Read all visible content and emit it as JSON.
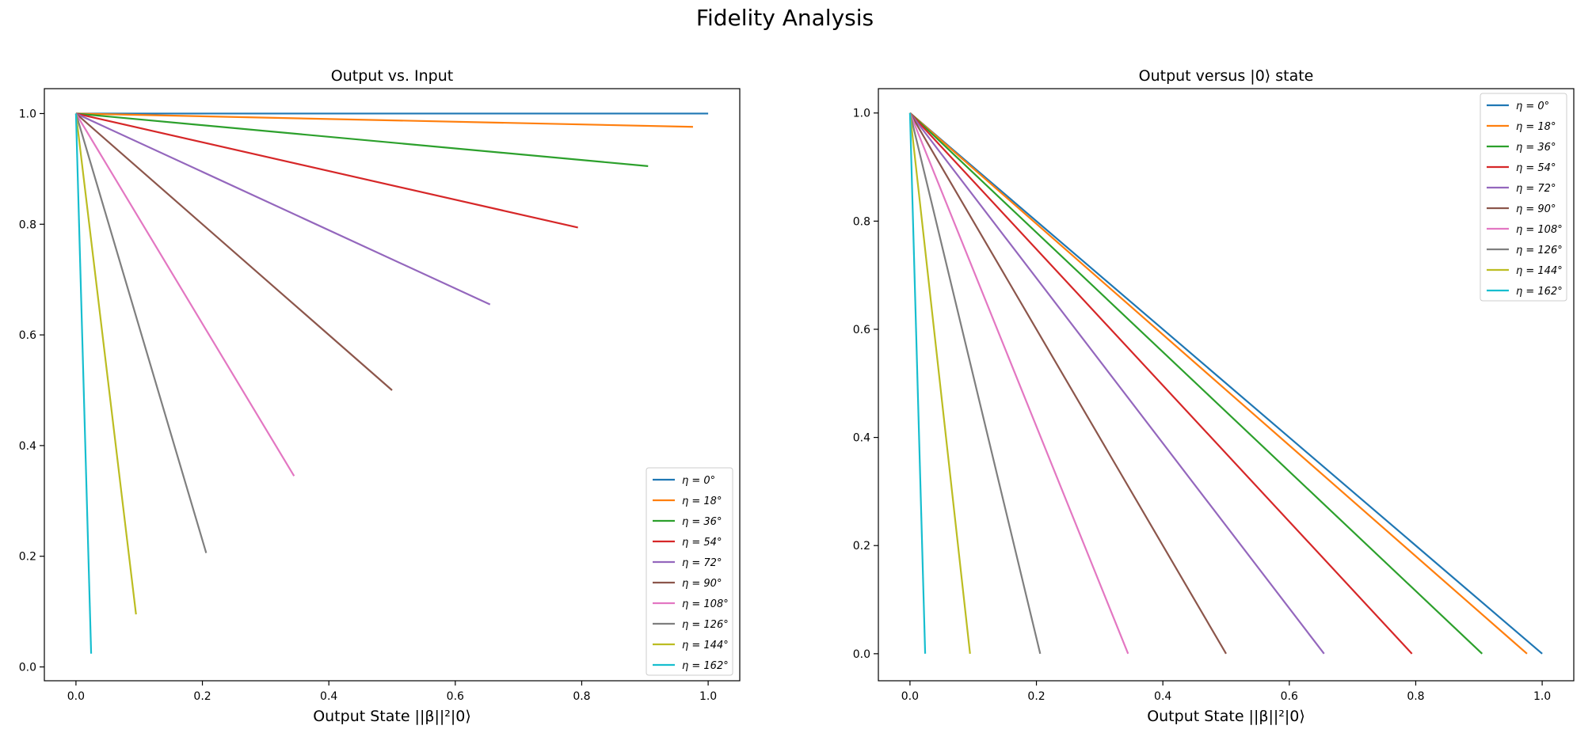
{
  "suptitle": "Fidelity Analysis",
  "series_labels": [
    "η = 0°",
    "η = 18°",
    "η = 36°",
    "η = 54°",
    "η = 72°",
    "η = 90°",
    "η = 108°",
    "η = 126°",
    "η = 144°",
    "η = 162°"
  ],
  "series_colors": [
    "#1f77b4",
    "#ff7f0e",
    "#2ca02c",
    "#d62728",
    "#9467bd",
    "#8c564b",
    "#e377c2",
    "#7f7f7f",
    "#bcbd22",
    "#17becf"
  ],
  "chart_data": [
    {
      "type": "line",
      "title": "Output vs. Input",
      "xlabel": "Output State ||β||²|0⟩",
      "ylabel": "",
      "xlim": [
        -0.05,
        1.05
      ],
      "ylim": [
        -0.025,
        1.045
      ],
      "xticks": [
        "0.0",
        "0.2",
        "0.4",
        "0.6",
        "0.8",
        "1.0"
      ],
      "yticks": [
        "0.0",
        "0.2",
        "0.4",
        "0.6",
        "0.8",
        "1.0"
      ],
      "legend": "lower-right",
      "grid": false,
      "series": [
        {
          "name": "η = 0°",
          "x": [
            0,
            1.0
          ],
          "y": [
            1.0,
            1.0
          ]
        },
        {
          "name": "η = 18°",
          "x": [
            0,
            0.976
          ],
          "y": [
            1.0,
            0.976
          ]
        },
        {
          "name": "η = 36°",
          "x": [
            0,
            0.905
          ],
          "y": [
            1.0,
            0.905
          ]
        },
        {
          "name": "η = 54°",
          "x": [
            0,
            0.794
          ],
          "y": [
            1.0,
            0.794
          ]
        },
        {
          "name": "η = 72°",
          "x": [
            0,
            0.655
          ],
          "y": [
            1.0,
            0.655
          ]
        },
        {
          "name": "η = 90°",
          "x": [
            0,
            0.5
          ],
          "y": [
            1.0,
            0.5
          ]
        },
        {
          "name": "η = 108°",
          "x": [
            0,
            0.345
          ],
          "y": [
            1.0,
            0.345
          ]
        },
        {
          "name": "η = 126°",
          "x": [
            0,
            0.206
          ],
          "y": [
            1.0,
            0.206
          ]
        },
        {
          "name": "η = 144°",
          "x": [
            0,
            0.095
          ],
          "y": [
            1.0,
            0.095
          ]
        },
        {
          "name": "η = 162°",
          "x": [
            0,
            0.024
          ],
          "y": [
            1.0,
            0.024
          ]
        }
      ]
    },
    {
      "type": "line",
      "title": "Output versus |0⟩ state",
      "xlabel": "Output State ||β||²|0⟩",
      "ylabel": "",
      "xlim": [
        -0.05,
        1.05
      ],
      "ylim": [
        -0.05,
        1.045
      ],
      "xticks": [
        "0.0",
        "0.2",
        "0.4",
        "0.6",
        "0.8",
        "1.0"
      ],
      "yticks": [
        "0.0",
        "0.2",
        "0.4",
        "0.6",
        "0.8",
        "1.0"
      ],
      "legend": "upper-right",
      "grid": false,
      "series": [
        {
          "name": "η = 0°",
          "x": [
            0,
            1.0
          ],
          "y": [
            1.0,
            0.0
          ]
        },
        {
          "name": "η = 18°",
          "x": [
            0,
            0.976
          ],
          "y": [
            1.0,
            0.0
          ]
        },
        {
          "name": "η = 36°",
          "x": [
            0,
            0.905
          ],
          "y": [
            1.0,
            0.0
          ]
        },
        {
          "name": "η = 54°",
          "x": [
            0,
            0.794
          ],
          "y": [
            1.0,
            0.0
          ]
        },
        {
          "name": "η = 72°",
          "x": [
            0,
            0.655
          ],
          "y": [
            1.0,
            0.0
          ]
        },
        {
          "name": "η = 90°",
          "x": [
            0,
            0.5
          ],
          "y": [
            1.0,
            0.0
          ]
        },
        {
          "name": "η = 108°",
          "x": [
            0,
            0.345
          ],
          "y": [
            1.0,
            0.0
          ]
        },
        {
          "name": "η = 126°",
          "x": [
            0,
            0.206
          ],
          "y": [
            1.0,
            0.0
          ]
        },
        {
          "name": "η = 144°",
          "x": [
            0,
            0.095
          ],
          "y": [
            1.0,
            0.0
          ]
        },
        {
          "name": "η = 162°",
          "x": [
            0,
            0.024
          ],
          "y": [
            1.0,
            0.0
          ]
        }
      ]
    }
  ]
}
